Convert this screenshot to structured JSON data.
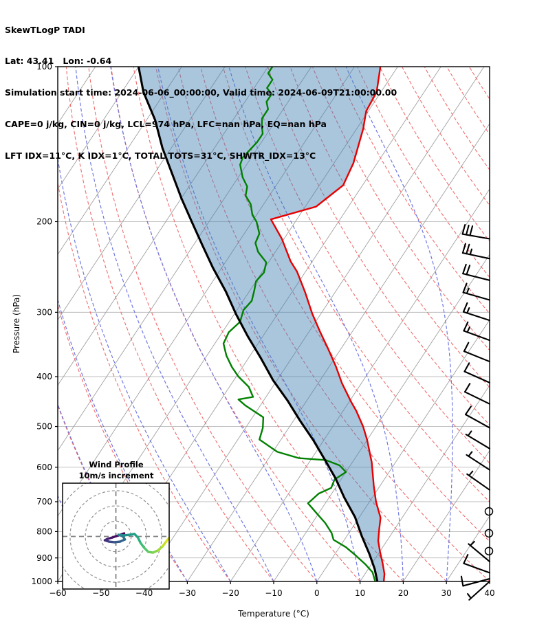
{
  "header": {
    "line1": "SkewTLogP TADI",
    "line2": "Lat: 43.41   Lon: -0.64",
    "line3": "Simulation start time: 2024-06-06_00:00:00, Valid time: 2024-06-09T21:00:00.00",
    "line4": "CAPE=0 j/kg, CIN=0 j/kg, LCL=974 hPa, LFC=nan hPa, EQ=nan hPa",
    "line5": "LFT IDX=11°C, K IDX=1°C, TOTAL TOTS=31°C, SHWTR_IDX=13°C"
  },
  "chart_data": {
    "type": "skew-t-log-p",
    "xlabel": "Temperature (°C)",
    "ylabel": "Pressure (hPa)",
    "x_ticks": [
      -60,
      -50,
      -40,
      -30,
      -20,
      -10,
      0,
      10,
      20,
      30,
      40
    ],
    "y_ticks": [
      100,
      200,
      300,
      400,
      500,
      600,
      700,
      800,
      900,
      1000
    ],
    "x_range": [
      -60,
      40
    ],
    "p_range": [
      100,
      1000
    ],
    "grid": {
      "isotherms": {
        "from": -140,
        "to": 40,
        "step": 10,
        "color": "#a0a0a0"
      },
      "dry_adiabats": {
        "from": -60,
        "to": 180,
        "step": 10,
        "color": "#ef6d6d"
      },
      "moist_adiabats": {
        "from": -60,
        "to": 40,
        "step": 10,
        "color": "#6a74e0"
      },
      "pressure_lines_color": "#b9b9b9",
      "shading_color": "rgba(70,130,180,0.46)",
      "temperature_color": "#e60000",
      "dewpoint_color": "#008000",
      "parcel_color": "#000000"
    },
    "temperature_profile": [
      [
        100,
        -64
      ],
      [
        112,
        -61
      ],
      [
        122,
        -60.5
      ],
      [
        132,
        -58.5
      ],
      [
        154,
        -55.5
      ],
      [
        170,
        -54.5
      ],
      [
        187,
        -57.5
      ],
      [
        198,
        -66
      ],
      [
        216,
        -60.5
      ],
      [
        239,
        -55
      ],
      [
        250,
        -52
      ],
      [
        274,
        -47
      ],
      [
        302,
        -42
      ],
      [
        327,
        -37.5
      ],
      [
        353,
        -33
      ],
      [
        382,
        -28.5
      ],
      [
        412,
        -24.5
      ],
      [
        448,
        -19.5
      ],
      [
        466,
        -17
      ],
      [
        500,
        -13
      ],
      [
        531,
        -10
      ],
      [
        587,
        -5.5
      ],
      [
        651,
        -1.5
      ],
      [
        700,
        1.5
      ],
      [
        752,
        5
      ],
      [
        793,
        6.5
      ],
      [
        834,
        8
      ],
      [
        874,
        10
      ],
      [
        923,
        12.5
      ],
      [
        967,
        14.5
      ],
      [
        1000,
        15.5
      ]
    ],
    "dewpoint_profile": [
      [
        100,
        -89
      ],
      [
        103,
        -89
      ],
      [
        106,
        -87
      ],
      [
        110,
        -87
      ],
      [
        113,
        -85
      ],
      [
        117,
        -85
      ],
      [
        121,
        -83.5
      ],
      [
        126,
        -83.5
      ],
      [
        130,
        -82.5
      ],
      [
        135,
        -81
      ],
      [
        140,
        -81
      ],
      [
        145,
        -81.5
      ],
      [
        150,
        -82
      ],
      [
        155,
        -81.5
      ],
      [
        164,
        -79
      ],
      [
        171,
        -76.5
      ],
      [
        178,
        -75.5
      ],
      [
        185,
        -73
      ],
      [
        194,
        -71
      ],
      [
        200,
        -69
      ],
      [
        211,
        -66.5
      ],
      [
        220,
        -66
      ],
      [
        229,
        -64
      ],
      [
        240,
        -60.5
      ],
      [
        251,
        -59.5
      ],
      [
        261,
        -60
      ],
      [
        272,
        -59
      ],
      [
        285,
        -58
      ],
      [
        297,
        -58.5
      ],
      [
        313,
        -57.5
      ],
      [
        328,
        -58.5
      ],
      [
        345,
        -58
      ],
      [
        364,
        -55.5
      ],
      [
        383,
        -52.5
      ],
      [
        400,
        -49.5
      ],
      [
        419,
        -45.5
      ],
      [
        438,
        -43
      ],
      [
        443,
        -46
      ],
      [
        455,
        -43.5
      ],
      [
        480,
        -37.5
      ],
      [
        503,
        -36
      ],
      [
        530,
        -35
      ],
      [
        560,
        -29
      ],
      [
        576,
        -23
      ],
      [
        581,
        -16.5
      ],
      [
        595,
        -12.5
      ],
      [
        613,
        -10
      ],
      [
        634,
        -11.5
      ],
      [
        658,
        -11
      ],
      [
        675,
        -13
      ],
      [
        705,
        -14
      ],
      [
        737,
        -10.5
      ],
      [
        770,
        -7
      ],
      [
        805,
        -4
      ],
      [
        830,
        -2.5
      ],
      [
        858,
        1.5
      ],
      [
        890,
        5
      ],
      [
        925,
        8.5
      ],
      [
        960,
        11.5
      ],
      [
        1000,
        13.5
      ]
    ],
    "parcel_profile": [
      [
        100,
        -120
      ],
      [
        112,
        -115
      ],
      [
        127,
        -108
      ],
      [
        144,
        -102
      ],
      [
        161,
        -96
      ],
      [
        180,
        -90
      ],
      [
        200,
        -84
      ],
      [
        222,
        -78
      ],
      [
        246,
        -72
      ],
      [
        273,
        -65.5
      ],
      [
        303,
        -59.5
      ],
      [
        334,
        -53.5
      ],
      [
        369,
        -47
      ],
      [
        406,
        -41
      ],
      [
        445,
        -34.5
      ],
      [
        487,
        -28.5
      ],
      [
        531,
        -22.5
      ],
      [
        578,
        -17
      ],
      [
        630,
        -11.5
      ],
      [
        687,
        -6.5
      ],
      [
        750,
        -1
      ],
      [
        817,
        3.5
      ],
      [
        885,
        8
      ],
      [
        946,
        11.5
      ],
      [
        1000,
        14
      ]
    ],
    "wind_barbs": [
      [
        216,
        30,
        170
      ],
      [
        236,
        25,
        168
      ],
      [
        260,
        20,
        166
      ],
      [
        284,
        15,
        164
      ],
      [
        311,
        15,
        162
      ],
      [
        340,
        15,
        160
      ],
      [
        374,
        10,
        158
      ],
      [
        411,
        10,
        156
      ],
      [
        452,
        10,
        154
      ],
      [
        503,
        10,
        151
      ],
      [
        552,
        5,
        149
      ],
      [
        607,
        5,
        147
      ],
      [
        664,
        5,
        145
      ],
      [
        915,
        5,
        140
      ],
      [
        962,
        10,
        160
      ],
      [
        988,
        10,
        195
      ],
      [
        1000,
        5,
        222
      ]
    ],
    "calm_levels": [
      731,
      806,
      873
    ],
    "hodograph": {
      "title": "Wind Profile",
      "subtitle": "10m/s increment",
      "ring_increment_mps": 10,
      "rings": [
        10,
        20,
        30,
        40
      ],
      "trace_uv": [
        [
          5.4,
          2.0
        ],
        [
          1.8,
          0.7
        ],
        [
          -2.3,
          -0.7
        ],
        [
          -5.4,
          -1.6
        ],
        [
          -7.2,
          -2.5
        ],
        [
          -4.5,
          -3.4
        ],
        [
          -0.9,
          -3.8
        ],
        [
          2.7,
          -3.4
        ],
        [
          5.9,
          -2.0
        ],
        [
          4.5,
          0.2
        ],
        [
          1.8,
          1.1
        ],
        [
          5.4,
          0.7
        ],
        [
          9.0,
          1.1
        ],
        [
          12.2,
          1.6
        ],
        [
          14.4,
          -0.7
        ],
        [
          16.2,
          -4.3
        ],
        [
          18.5,
          -7.4
        ],
        [
          21.2,
          -10.1
        ],
        [
          24.3,
          -10.6
        ],
        [
          27.5,
          -9.2
        ],
        [
          30.6,
          -6.5
        ],
        [
          32.9,
          -3.4
        ],
        [
          34.7,
          -1.1
        ]
      ],
      "trace_colors": [
        "#440154",
        "#470d60",
        "#48186a",
        "#482475",
        "#46307e",
        "#3e4a89",
        "#375a8c",
        "#32648e",
        "#2e6f8e",
        "#2a788e",
        "#25848e",
        "#21918c",
        "#1e9c89",
        "#20a386",
        "#28ae80",
        "#3dbc74",
        "#51c56a",
        "#69cd5b",
        "#83d44c",
        "#a2da37",
        "#c2df23",
        "#dfe318",
        "#fde725"
      ]
    }
  }
}
